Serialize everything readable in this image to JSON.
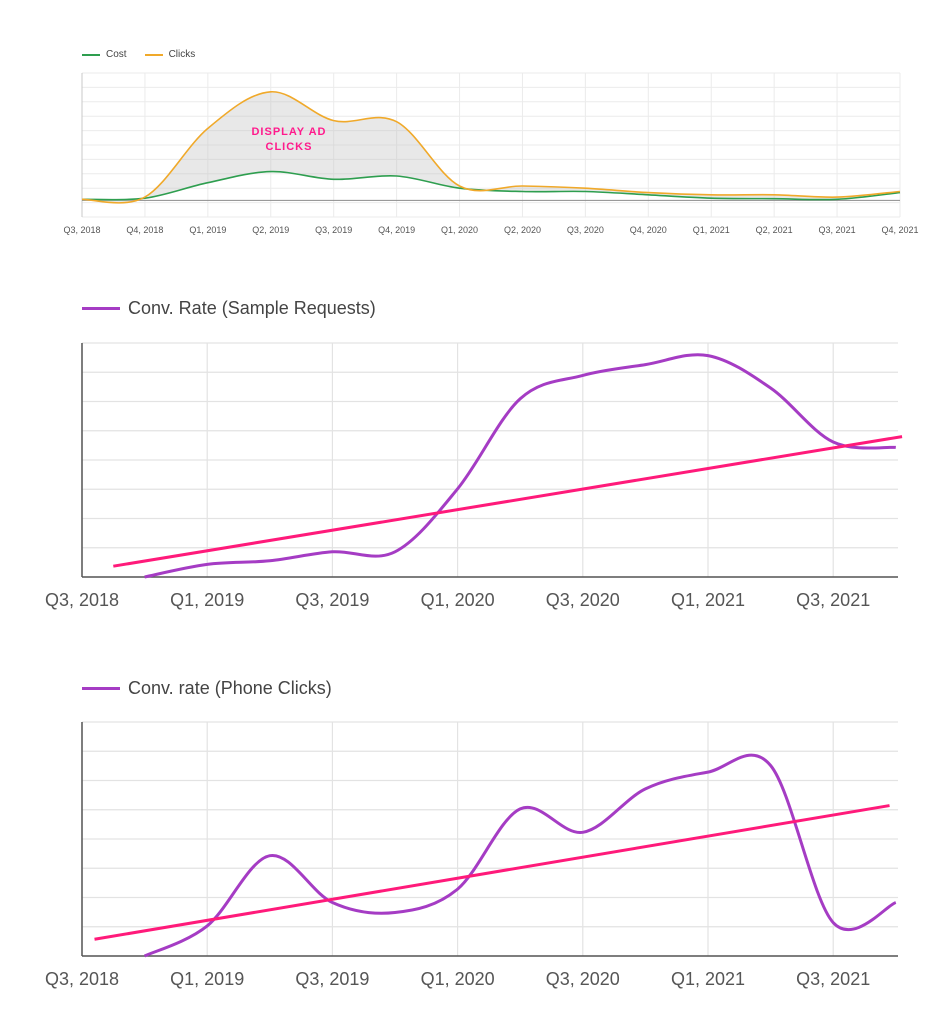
{
  "chart_data": [
    {
      "type": "area",
      "title": "",
      "xlabel": "",
      "ylabel": "",
      "categories": [
        "Q3, 2018",
        "Q4, 2018",
        "Q1, 2019",
        "Q2, 2019",
        "Q3, 2019",
        "Q4, 2019",
        "Q1, 2020",
        "Q2, 2020",
        "Q3, 2020",
        "Q4, 2020",
        "Q1, 2021",
        "Q2, 2021",
        "Q3, 2021",
        "Q4, 2021"
      ],
      "series": [
        {
          "name": "Cost",
          "color": "#2e9e4f",
          "values": [
            1,
            2,
            16,
            26,
            19,
            22,
            11,
            8,
            8,
            5,
            2,
            1.5,
            1,
            7
          ]
        },
        {
          "name": "Clicks",
          "color": "#f0a92a",
          "values": [
            1,
            3,
            65,
            98,
            72,
            71,
            13,
            13,
            11,
            7,
            5,
            5,
            3,
            8
          ]
        }
      ],
      "ylim": [
        -15,
        115
      ],
      "grid": true,
      "legend": "top-left",
      "annotation": {
        "lines": [
          "DISPLAY AD",
          "CLICKS"
        ],
        "color": "#ff1a8c"
      }
    },
    {
      "type": "line",
      "title": "",
      "xlabel": "",
      "ylabel": "",
      "categories": [
        "Q3, 2018",
        "Q1, 2019",
        "Q3, 2019",
        "Q1, 2020",
        "Q3, 2020",
        "Q1, 2021",
        "Q3, 2021"
      ],
      "x": [
        0,
        0.5,
        1,
        1.5,
        2,
        2.5,
        3,
        3.5,
        4,
        4.5,
        5,
        5.5,
        6,
        6.5
      ],
      "series": [
        {
          "name": "Conv. Rate (Sample Requests)",
          "color": "#a53cc4",
          "values": [
            null,
            0,
            7,
            9,
            14,
            14,
            49,
            99,
            112,
            118,
            123,
            105,
            75,
            72
          ]
        },
        {
          "name": "",
          "color": "#ff1a7a",
          "trend": true,
          "x": [
            0.25,
            6.55
          ],
          "values": [
            6,
            78
          ]
        }
      ],
      "ylim": [
        0,
        130
      ],
      "grid": true,
      "legend": "top-left"
    },
    {
      "type": "line",
      "title": "",
      "xlabel": "",
      "ylabel": "",
      "categories": [
        "Q3, 2018",
        "Q1, 2019",
        "Q3, 2019",
        "Q1, 2020",
        "Q3, 2020",
        "Q1, 2021",
        "Q3, 2021"
      ],
      "x": [
        0,
        0.5,
        1,
        1.5,
        2,
        2.5,
        3,
        3.5,
        4,
        4.5,
        5,
        5.5,
        6,
        6.5
      ],
      "series": [
        {
          "name": "Conv. rate (Phone Clicks)",
          "color": "#a53cc4",
          "values": [
            null,
            0,
            9,
            30,
            16,
            13,
            20,
            44,
            37,
            50,
            55,
            57,
            10,
            16
          ]
        },
        {
          "name": "",
          "color": "#ff1a7a",
          "trend": true,
          "x": [
            0.1,
            6.45
          ],
          "values": [
            5,
            45
          ]
        }
      ],
      "ylim": [
        0,
        70
      ],
      "grid": true,
      "legend": "top-left"
    }
  ]
}
